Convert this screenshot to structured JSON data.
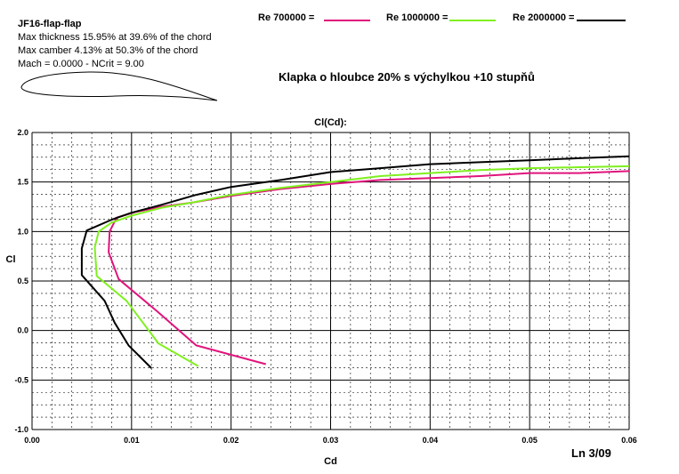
{
  "airfoil": {
    "name": "JF16-flap-flap",
    "lines": [
      "Max thickness 15.95% at 39.6% of the chord",
      "Max camber 4.13% at 50.3% of the chord",
      "Mach = 0.0000 - NCrit = 9.00"
    ]
  },
  "subtitle": "Klapka o hloubce 20% s výchylkou +10 stupňů",
  "stamp": "Ln 3/09",
  "colors": {
    "re700000": "#e0147c",
    "re1000000": "#80f020",
    "re2000000": "#000000",
    "grid": "#000000"
  },
  "chart_data": {
    "type": "line",
    "title": "Cl(Cd):",
    "xlabel": "Cd",
    "ylabel": "Cl",
    "xlim": [
      0.0,
      0.06
    ],
    "ylim": [
      -1.0,
      2.0
    ],
    "xticks": [
      "0.00",
      "0.01",
      "0.02",
      "0.03",
      "0.04",
      "0.05",
      "0.06"
    ],
    "yticks": [
      "2.0",
      "1.5",
      "1.0",
      "0.5",
      "0.0",
      "-0.5",
      "-1.0"
    ],
    "grid": true,
    "legend_position": "top",
    "series": [
      {
        "name": "Re 700000 =",
        "color": "#e0147c",
        "points": [
          [
            0.0235,
            -0.34
          ],
          [
            0.0165,
            -0.15
          ],
          [
            0.0125,
            0.2
          ],
          [
            0.0087,
            0.52
          ],
          [
            0.0077,
            0.79
          ],
          [
            0.0078,
            1.0
          ],
          [
            0.0085,
            1.14
          ],
          [
            0.0105,
            1.2
          ],
          [
            0.013,
            1.25
          ],
          [
            0.016,
            1.29
          ],
          [
            0.02,
            1.36
          ],
          [
            0.025,
            1.43
          ],
          [
            0.03,
            1.48
          ],
          [
            0.035,
            1.52
          ],
          [
            0.04,
            1.54
          ],
          [
            0.045,
            1.56
          ],
          [
            0.05,
            1.59
          ],
          [
            0.055,
            1.59
          ],
          [
            0.06,
            1.61
          ]
        ]
      },
      {
        "name": "Re 1000000 =",
        "color": "#80f020",
        "points": [
          [
            0.0167,
            -0.36
          ],
          [
            0.0127,
            -0.13
          ],
          [
            0.0095,
            0.3
          ],
          [
            0.0065,
            0.55
          ],
          [
            0.0063,
            0.84
          ],
          [
            0.0067,
            1.0
          ],
          [
            0.008,
            1.09
          ],
          [
            0.01,
            1.16
          ],
          [
            0.013,
            1.24
          ],
          [
            0.016,
            1.29
          ],
          [
            0.02,
            1.37
          ],
          [
            0.025,
            1.44
          ],
          [
            0.03,
            1.5
          ],
          [
            0.035,
            1.56
          ],
          [
            0.04,
            1.59
          ],
          [
            0.045,
            1.62
          ],
          [
            0.05,
            1.64
          ],
          [
            0.055,
            1.65
          ],
          [
            0.06,
            1.66
          ]
        ]
      },
      {
        "name": "Re 2000000 =",
        "color": "#000000",
        "points": [
          [
            0.012,
            -0.38
          ],
          [
            0.0097,
            -0.15
          ],
          [
            0.0083,
            0.08
          ],
          [
            0.0073,
            0.3
          ],
          [
            0.005,
            0.56
          ],
          [
            0.005,
            0.83
          ],
          [
            0.0055,
            1.01
          ],
          [
            0.008,
            1.12
          ],
          [
            0.01,
            1.19
          ],
          [
            0.013,
            1.27
          ],
          [
            0.0165,
            1.37
          ],
          [
            0.02,
            1.45
          ],
          [
            0.025,
            1.52
          ],
          [
            0.03,
            1.6
          ],
          [
            0.035,
            1.64
          ],
          [
            0.04,
            1.68
          ],
          [
            0.045,
            1.7
          ],
          [
            0.05,
            1.72
          ],
          [
            0.055,
            1.74
          ],
          [
            0.06,
            1.76
          ]
        ]
      }
    ]
  }
}
